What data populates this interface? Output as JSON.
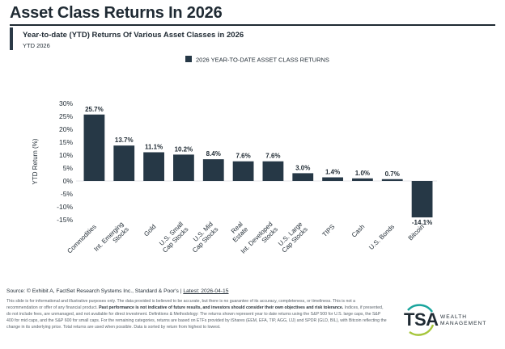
{
  "header": {
    "title": "Asset Class Returns In 2026",
    "subtitle": "Year-to-date (YTD) Returns Of Various Asset Classes in 2026",
    "period": "YTD 2026"
  },
  "colors": {
    "bar": "#263846",
    "text": "#1f2a33",
    "grid": "#d9dde1",
    "accent_teal": "#1aa59d",
    "accent_lime": "#a6c63c"
  },
  "chart_data": {
    "type": "bar",
    "title": "",
    "legend_label": "2026 YEAR-TO-DATE ASSET CLASS RETURNS",
    "legend_position": "top-center",
    "xlabel": "",
    "ylabel": "YTD Return (%)",
    "ylim": [
      -15,
      30
    ],
    "yticks": [
      30,
      25,
      20,
      15,
      10,
      5,
      0,
      -5,
      -10,
      -15
    ],
    "ytick_labels": [
      "30%",
      "25%",
      "20%",
      "15%",
      "10%",
      "5%",
      "0%",
      "-5%",
      "-10%",
      "-15%"
    ],
    "grid": false,
    "categories": [
      "Commodities",
      "Int. Emerging Stocks",
      "Gold",
      "U.S. Small Cap Stocks",
      "U.S. Mid Cap Stocks",
      "Real Estate",
      "Int. Developed Stocks",
      "U.S. Large Cap Stocks",
      "TIPS",
      "Cash",
      "U.S. Bonds",
      "Bitcoin"
    ],
    "category_lines": [
      [
        "Commodities"
      ],
      [
        "Int. Emerging",
        "Stocks"
      ],
      [
        "Gold"
      ],
      [
        "U.S. Small",
        "Cap Stocks"
      ],
      [
        "U.S. Mid",
        "Cap Stocks"
      ],
      [
        "Real",
        "Estate"
      ],
      [
        "Int. Developed",
        "Stocks"
      ],
      [
        "U.S. Large",
        "Cap Stocks"
      ],
      [
        "TIPS"
      ],
      [
        "Cash"
      ],
      [
        "U.S. Bonds"
      ],
      [
        "Bitcoin"
      ]
    ],
    "values": [
      25.7,
      13.7,
      11.1,
      10.2,
      8.4,
      7.6,
      7.6,
      3.0,
      1.4,
      1.0,
      0.7,
      -14.1
    ],
    "value_labels": [
      "25.7%",
      "13.7%",
      "11.1%",
      "10.2%",
      "8.4%",
      "7.6%",
      "7.6%",
      "3.0%",
      "1.4%",
      "1.0%",
      "0.7%",
      "-14.1%"
    ]
  },
  "footer": {
    "source_prefix": "Source: © Exhibit A, FactSet Research Systems Inc., Standard & Poor's | ",
    "source_latest": "Latest: 2026-04-15",
    "disclaimer_1": "This slide is for informational and illustrative purposes only. The data provided is believed to be accurate, but there is no guarantee of its accuracy, completeness, or timeliness. This is not a recommendation or offer of any financial product. ",
    "disclaimer_bold": "Past performance is not indicative of future results, and investors should consider their own objectives and risk tolerance.",
    "disclaimer_2": " Indices, if presented, do not include fees, are unmanaged, and not available for direct investment. Definitions & Methodology: The returns shown represent year to date returns using the S&P 500 for U.S. large caps, the S&P 400 for mid caps, and the S&P 600 for small caps. For the remaining categories, returns are based on ETFs provided by iShares (EEM, EFA, TIP, AGG, IJJ) and SPDR (GLD, BIL), with Bitcoin reflecting the change in its underlying price. Total returns are used when possible. Data is sorted by return from highest to lowest."
  },
  "logo": {
    "mark": "TSA",
    "line1": "WEALTH",
    "line2": "MANAGEMENT"
  }
}
